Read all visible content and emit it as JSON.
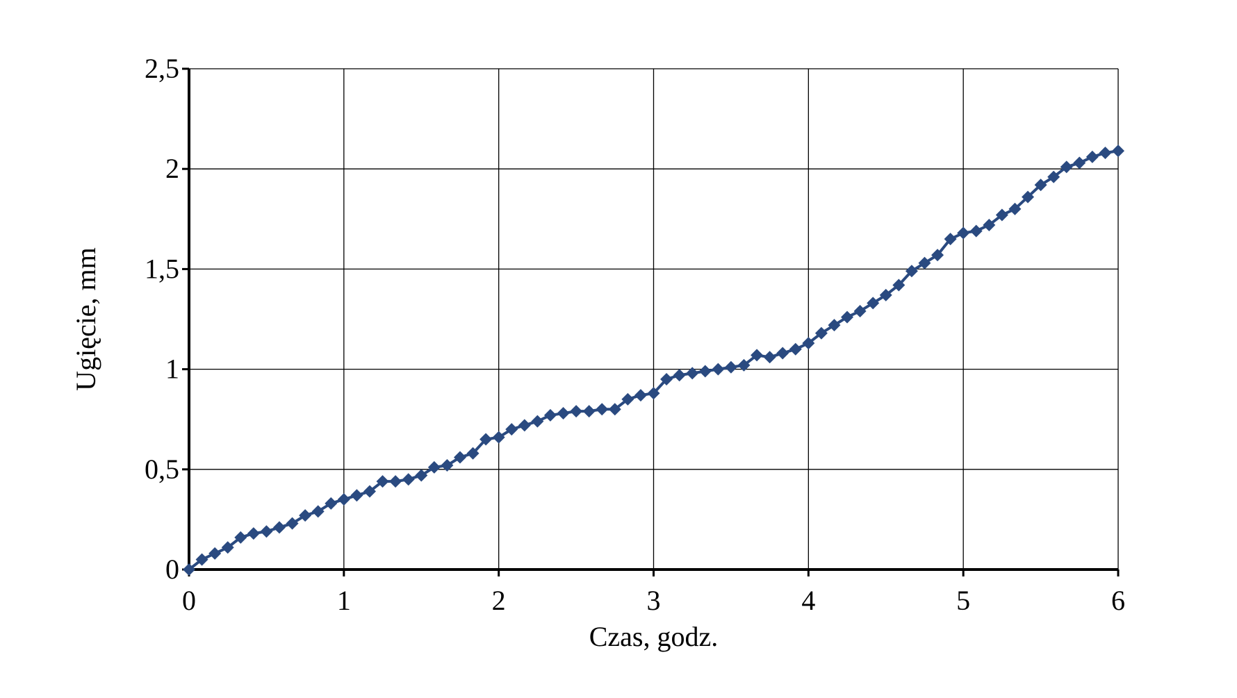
{
  "chart_data": {
    "type": "line",
    "title": "",
    "xlabel": "Czas, godz.",
    "ylabel": "Ugięcie, mm",
    "xlim": [
      0,
      6
    ],
    "ylim": [
      0,
      2.5
    ],
    "x_ticks": [
      "0",
      "1",
      "2",
      "3",
      "4",
      "5",
      "6"
    ],
    "y_ticks": [
      "0",
      "0,5",
      "1",
      "1,5",
      "2",
      "2,5"
    ],
    "grid": true,
    "legend": "none",
    "marker": "diamond",
    "series_color": "#2a4a80",
    "axis_color": "#000000",
    "series": [
      {
        "x": [
          0,
          0.0833,
          0.1667,
          0.25,
          0.3333,
          0.4167,
          0.5,
          0.5833,
          0.6667,
          0.75,
          0.8333,
          0.9167,
          1.0,
          1.0833,
          1.1667,
          1.25,
          1.3333,
          1.4167,
          1.5,
          1.5833,
          1.6667,
          1.75,
          1.8333,
          1.9167,
          2.0,
          2.0833,
          2.1667,
          2.25,
          2.3333,
          2.4167,
          2.5,
          2.5833,
          2.6667,
          2.75,
          2.8333,
          2.9167,
          3.0,
          3.0833,
          3.1667,
          3.25,
          3.3333,
          3.4167,
          3.5,
          3.5833,
          3.6667,
          3.75,
          3.8333,
          3.9167,
          4.0,
          4.0833,
          4.1667,
          4.25,
          4.3333,
          4.4167,
          4.5,
          4.5833,
          4.6667,
          4.75,
          4.8333,
          4.9167,
          5.0,
          5.0833,
          5.1667,
          5.25,
          5.3333,
          5.4167,
          5.5,
          5.5833,
          5.6667,
          5.75,
          5.8333,
          5.9167,
          6.0
        ],
        "values": [
          0,
          0.05,
          0.08,
          0.11,
          0.16,
          0.18,
          0.19,
          0.21,
          0.23,
          0.27,
          0.29,
          0.33,
          0.35,
          0.37,
          0.39,
          0.44,
          0.44,
          0.45,
          0.47,
          0.51,
          0.52,
          0.56,
          0.58,
          0.65,
          0.66,
          0.7,
          0.72,
          0.74,
          0.77,
          0.78,
          0.79,
          0.79,
          0.8,
          0.8,
          0.85,
          0.87,
          0.88,
          0.95,
          0.97,
          0.98,
          0.99,
          1.0,
          1.01,
          1.02,
          1.07,
          1.06,
          1.08,
          1.1,
          1.13,
          1.18,
          1.22,
          1.26,
          1.29,
          1.33,
          1.37,
          1.42,
          1.49,
          1.53,
          1.57,
          1.65,
          1.68,
          1.69,
          1.72,
          1.77,
          1.8,
          1.86,
          1.92,
          1.96,
          2.01,
          2.03,
          2.06,
          2.08,
          2.09
        ]
      }
    ]
  }
}
